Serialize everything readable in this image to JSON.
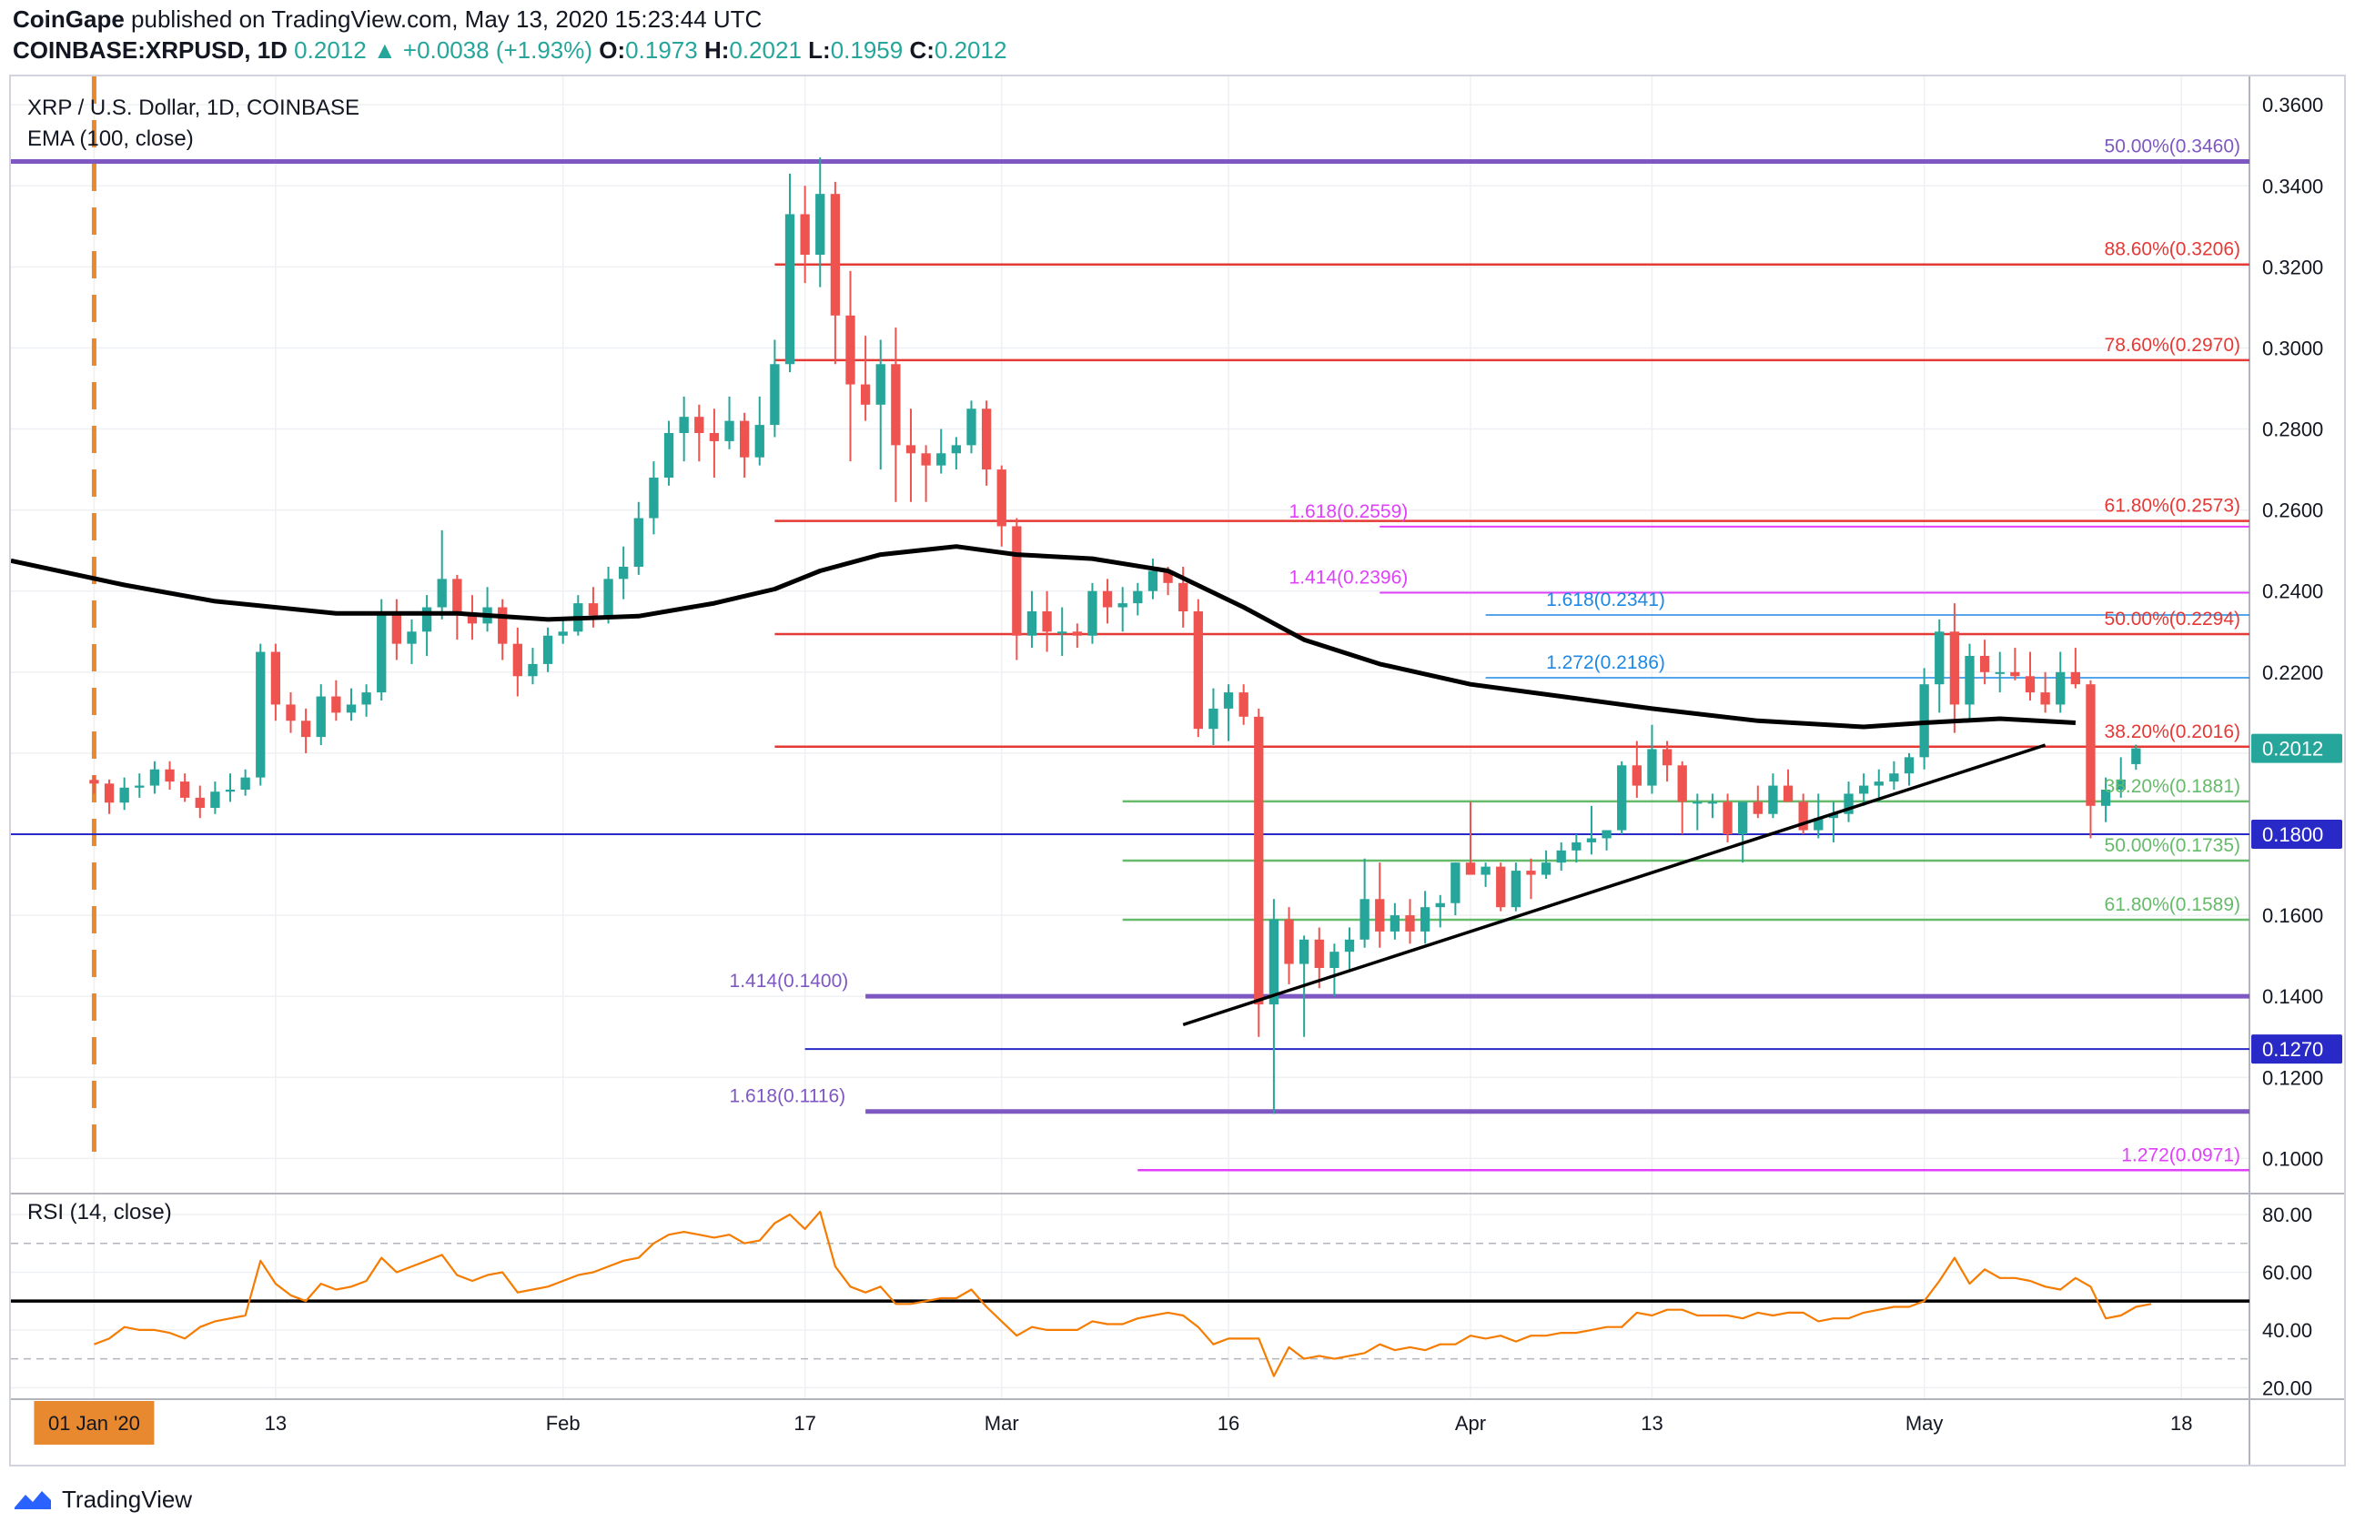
{
  "header": {
    "publisher": "CoinGape",
    "published_text": "published on TradingView.com, May 13, 2020 15:23:44 UTC",
    "symbol": "COINBASE:XRPUSD, 1D",
    "last": "0.2012",
    "change": "▲ +0.0038 (+1.93%)",
    "o_label": "O:",
    "o": "0.1973",
    "h_label": "H:",
    "h": "0.2021",
    "l_label": "L:",
    "l": "0.1959",
    "c_label": "C:",
    "c": "0.2012"
  },
  "legend": {
    "title": "XRP / U.S. Dollar, 1D, COINBASE",
    "indicator": "EMA (100, close)",
    "rsi_title": "RSI (14, close)"
  },
  "footer": {
    "brand": "TradingView"
  },
  "colors": {
    "up": "#26a69a",
    "down": "#ef5350",
    "ema": "#000000",
    "rsi": "#f57c00",
    "fib_red": "#e53935",
    "fib_green": "#66bb6a",
    "fib_purple": "#7e57c2",
    "fib_magenta": "#e040fb",
    "fib_blue": "#1e88e5",
    "support_blue": "#2929c7",
    "price_tag": "#26a69a",
    "date_marker": "#e8892f"
  },
  "chart_data": {
    "type": "candlestick",
    "title": "XRP / U.S. Dollar, 1D, COINBASE",
    "ylim": [
      0.092,
      0.367
    ],
    "yticks": [
      "0.3600",
      "0.3400",
      "0.3200",
      "0.3000",
      "0.2800",
      "0.2600",
      "0.2400",
      "0.2200",
      "0.2000",
      "0.1800",
      "0.1600",
      "0.1400",
      "0.1200",
      "0.1000"
    ],
    "xlim": [
      -5.5,
      142.5
    ],
    "xticks": [
      {
        "x": 0,
        "label": "01 Jan '20",
        "highlight": true
      },
      {
        "x": 12,
        "label": "13"
      },
      {
        "x": 31,
        "label": "Feb"
      },
      {
        "x": 47,
        "label": "17"
      },
      {
        "x": 60,
        "label": "Mar"
      },
      {
        "x": 75,
        "label": "16"
      },
      {
        "x": 91,
        "label": "Apr"
      },
      {
        "x": 103,
        "label": "13"
      },
      {
        "x": 121,
        "label": "May"
      },
      {
        "x": 138,
        "label": "18"
      }
    ],
    "current_price": {
      "value": 0.2012,
      "label": "0.2012"
    },
    "price_labels": [
      {
        "value": 0.18,
        "label": "0.1800"
      },
      {
        "value": 0.127,
        "label": "0.1270"
      }
    ],
    "grid": true,
    "candles_ohlc": [
      [
        0.1934,
        0.1945,
        0.19,
        0.1925
      ],
      [
        0.1925,
        0.1935,
        0.185,
        0.1878
      ],
      [
        0.1878,
        0.194,
        0.186,
        0.1915
      ],
      [
        0.1915,
        0.195,
        0.189,
        0.192
      ],
      [
        0.192,
        0.198,
        0.19,
        0.196
      ],
      [
        0.196,
        0.198,
        0.191,
        0.193
      ],
      [
        0.193,
        0.195,
        0.188,
        0.189
      ],
      [
        0.189,
        0.192,
        0.184,
        0.1865
      ],
      [
        0.1865,
        0.193,
        0.185,
        0.1905
      ],
      [
        0.1905,
        0.195,
        0.188,
        0.191
      ],
      [
        0.191,
        0.196,
        0.1895,
        0.194
      ],
      [
        0.194,
        0.227,
        0.192,
        0.225
      ],
      [
        0.225,
        0.227,
        0.208,
        0.212
      ],
      [
        0.212,
        0.215,
        0.205,
        0.208
      ],
      [
        0.208,
        0.211,
        0.2,
        0.204
      ],
      [
        0.204,
        0.217,
        0.202,
        0.214
      ],
      [
        0.214,
        0.218,
        0.208,
        0.21
      ],
      [
        0.21,
        0.216,
        0.208,
        0.212
      ],
      [
        0.212,
        0.217,
        0.209,
        0.215
      ],
      [
        0.215,
        0.238,
        0.213,
        0.234
      ],
      [
        0.234,
        0.238,
        0.223,
        0.227
      ],
      [
        0.227,
        0.233,
        0.222,
        0.23
      ],
      [
        0.23,
        0.239,
        0.224,
        0.236
      ],
      [
        0.236,
        0.255,
        0.233,
        0.243
      ],
      [
        0.243,
        0.244,
        0.228,
        0.234
      ],
      [
        0.234,
        0.239,
        0.228,
        0.232
      ],
      [
        0.232,
        0.241,
        0.23,
        0.236
      ],
      [
        0.236,
        0.238,
        0.223,
        0.227
      ],
      [
        0.227,
        0.231,
        0.214,
        0.219
      ],
      [
        0.219,
        0.226,
        0.217,
        0.222
      ],
      [
        0.222,
        0.231,
        0.22,
        0.229
      ],
      [
        0.229,
        0.233,
        0.227,
        0.23
      ],
      [
        0.23,
        0.239,
        0.229,
        0.237
      ],
      [
        0.237,
        0.241,
        0.231,
        0.234
      ],
      [
        0.234,
        0.246,
        0.232,
        0.243
      ],
      [
        0.243,
        0.251,
        0.238,
        0.246
      ],
      [
        0.246,
        0.262,
        0.244,
        0.258
      ],
      [
        0.258,
        0.272,
        0.254,
        0.268
      ],
      [
        0.268,
        0.282,
        0.266,
        0.279
      ],
      [
        0.279,
        0.288,
        0.272,
        0.283
      ],
      [
        0.283,
        0.286,
        0.272,
        0.279
      ],
      [
        0.279,
        0.285,
        0.268,
        0.277
      ],
      [
        0.277,
        0.288,
        0.275,
        0.282
      ],
      [
        0.282,
        0.284,
        0.268,
        0.273
      ],
      [
        0.273,
        0.288,
        0.271,
        0.281
      ],
      [
        0.281,
        0.302,
        0.278,
        0.296
      ],
      [
        0.296,
        0.343,
        0.294,
        0.333
      ],
      [
        0.333,
        0.34,
        0.316,
        0.323
      ],
      [
        0.323,
        0.347,
        0.315,
        0.338
      ],
      [
        0.338,
        0.341,
        0.296,
        0.308
      ],
      [
        0.308,
        0.319,
        0.272,
        0.291
      ],
      [
        0.291,
        0.303,
        0.282,
        0.286
      ],
      [
        0.286,
        0.302,
        0.27,
        0.296
      ],
      [
        0.296,
        0.305,
        0.262,
        0.276
      ],
      [
        0.276,
        0.285,
        0.262,
        0.274
      ],
      [
        0.274,
        0.276,
        0.262,
        0.271
      ],
      [
        0.271,
        0.28,
        0.269,
        0.274
      ],
      [
        0.274,
        0.278,
        0.27,
        0.276
      ],
      [
        0.276,
        0.287,
        0.274,
        0.285
      ],
      [
        0.285,
        0.287,
        0.266,
        0.27
      ],
      [
        0.27,
        0.271,
        0.251,
        0.256
      ],
      [
        0.256,
        0.258,
        0.223,
        0.229
      ],
      [
        0.229,
        0.24,
        0.226,
        0.235
      ],
      [
        0.235,
        0.24,
        0.225,
        0.23
      ],
      [
        0.23,
        0.236,
        0.224,
        0.23
      ],
      [
        0.23,
        0.232,
        0.226,
        0.229
      ],
      [
        0.229,
        0.242,
        0.227,
        0.24
      ],
      [
        0.24,
        0.243,
        0.232,
        0.236
      ],
      [
        0.236,
        0.241,
        0.23,
        0.237
      ],
      [
        0.237,
        0.242,
        0.234,
        0.24
      ],
      [
        0.24,
        0.248,
        0.238,
        0.245
      ],
      [
        0.245,
        0.246,
        0.239,
        0.242
      ],
      [
        0.242,
        0.246,
        0.231,
        0.235
      ],
      [
        0.235,
        0.238,
        0.204,
        0.206
      ],
      [
        0.206,
        0.216,
        0.202,
        0.211
      ],
      [
        0.211,
        0.217,
        0.203,
        0.215
      ],
      [
        0.215,
        0.217,
        0.207,
        0.209
      ],
      [
        0.209,
        0.211,
        0.13,
        0.138
      ],
      [
        0.138,
        0.164,
        0.111,
        0.159
      ],
      [
        0.159,
        0.162,
        0.143,
        0.148
      ],
      [
        0.148,
        0.155,
        0.13,
        0.154
      ],
      [
        0.154,
        0.157,
        0.142,
        0.147
      ],
      [
        0.147,
        0.153,
        0.14,
        0.151
      ],
      [
        0.151,
        0.157,
        0.146,
        0.154
      ],
      [
        0.154,
        0.174,
        0.152,
        0.164
      ],
      [
        0.164,
        0.173,
        0.152,
        0.156
      ],
      [
        0.156,
        0.163,
        0.154,
        0.16
      ],
      [
        0.16,
        0.164,
        0.153,
        0.156
      ],
      [
        0.156,
        0.166,
        0.153,
        0.162
      ],
      [
        0.162,
        0.165,
        0.157,
        0.163
      ],
      [
        0.163,
        0.173,
        0.16,
        0.173
      ],
      [
        0.173,
        0.188,
        0.17,
        0.17
      ],
      [
        0.17,
        0.173,
        0.167,
        0.172
      ],
      [
        0.172,
        0.173,
        0.161,
        0.162
      ],
      [
        0.162,
        0.173,
        0.161,
        0.171
      ],
      [
        0.171,
        0.174,
        0.164,
        0.17
      ],
      [
        0.17,
        0.176,
        0.169,
        0.173
      ],
      [
        0.173,
        0.178,
        0.171,
        0.176
      ],
      [
        0.176,
        0.18,
        0.173,
        0.178
      ],
      [
        0.178,
        0.187,
        0.175,
        0.179
      ],
      [
        0.179,
        0.181,
        0.176,
        0.181
      ],
      [
        0.181,
        0.198,
        0.18,
        0.197
      ],
      [
        0.197,
        0.203,
        0.189,
        0.192
      ],
      [
        0.192,
        0.207,
        0.19,
        0.201
      ],
      [
        0.201,
        0.203,
        0.193,
        0.197
      ],
      [
        0.197,
        0.198,
        0.18,
        0.188
      ],
      [
        0.188,
        0.19,
        0.181,
        0.188
      ],
      [
        0.188,
        0.19,
        0.184,
        0.188
      ],
      [
        0.188,
        0.19,
        0.178,
        0.18
      ],
      [
        0.18,
        0.187,
        0.173,
        0.188
      ],
      [
        0.188,
        0.192,
        0.184,
        0.185
      ],
      [
        0.185,
        0.195,
        0.184,
        0.192
      ],
      [
        0.192,
        0.196,
        0.188,
        0.188
      ],
      [
        0.188,
        0.19,
        0.18,
        0.181
      ],
      [
        0.181,
        0.19,
        0.179,
        0.184
      ],
      [
        0.184,
        0.188,
        0.178,
        0.185
      ],
      [
        0.185,
        0.193,
        0.183,
        0.19
      ],
      [
        0.19,
        0.195,
        0.187,
        0.192
      ],
      [
        0.192,
        0.196,
        0.188,
        0.193
      ],
      [
        0.193,
        0.198,
        0.191,
        0.195
      ],
      [
        0.195,
        0.2,
        0.192,
        0.199
      ],
      [
        0.199,
        0.221,
        0.196,
        0.217
      ],
      [
        0.217,
        0.233,
        0.21,
        0.23
      ],
      [
        0.23,
        0.237,
        0.205,
        0.212
      ],
      [
        0.212,
        0.227,
        0.208,
        0.224
      ],
      [
        0.224,
        0.228,
        0.217,
        0.22
      ],
      [
        0.22,
        0.225,
        0.215,
        0.22
      ],
      [
        0.22,
        0.226,
        0.218,
        0.219
      ],
      [
        0.219,
        0.225,
        0.213,
        0.215
      ],
      [
        0.215,
        0.22,
        0.21,
        0.212
      ],
      [
        0.212,
        0.225,
        0.21,
        0.22
      ],
      [
        0.22,
        0.226,
        0.216,
        0.217
      ],
      [
        0.217,
        0.218,
        0.179,
        0.187
      ],
      [
        0.187,
        0.194,
        0.183,
        0.191
      ],
      [
        0.191,
        0.199,
        0.189,
        0.1935
      ],
      [
        0.1973,
        0.2021,
        0.1959,
        0.2012
      ]
    ],
    "ema": {
      "name": "EMA (100, close)",
      "points": [
        [
          -5.5,
          0.2475
        ],
        [
          2,
          0.2415
        ],
        [
          8,
          0.2375
        ],
        [
          16,
          0.2345
        ],
        [
          24,
          0.2345
        ],
        [
          30,
          0.233
        ],
        [
          36,
          0.2338
        ],
        [
          41,
          0.237
        ],
        [
          45,
          0.2405
        ],
        [
          48,
          0.245
        ],
        [
          52,
          0.249
        ],
        [
          57,
          0.251
        ],
        [
          61,
          0.249
        ],
        [
          66,
          0.248
        ],
        [
          71,
          0.245
        ],
        [
          76,
          0.236
        ],
        [
          80,
          0.228
        ],
        [
          85,
          0.222
        ],
        [
          91,
          0.217
        ],
        [
          97,
          0.214
        ],
        [
          103,
          0.211
        ],
        [
          110,
          0.208
        ],
        [
          117,
          0.2065
        ],
        [
          121,
          0.2075
        ],
        [
          126,
          0.2085
        ],
        [
          131,
          0.2075
        ]
      ]
    },
    "trendline": {
      "from": [
        72,
        0.133
      ],
      "to": [
        129,
        0.202
      ]
    },
    "fib_lines": [
      {
        "value": 0.346,
        "label": "50.00%(0.3460)",
        "color": "#7e57c2",
        "x1": -5.5,
        "x2": 142.5,
        "width": 5
      },
      {
        "value": 0.3206,
        "label": "88.60%(0.3206)",
        "color": "#e53935",
        "x1": 45,
        "x2": 142.5,
        "width": 2.5
      },
      {
        "value": 0.297,
        "label": "78.60%(0.2970)",
        "color": "#e53935",
        "x1": 45,
        "x2": 142.5,
        "width": 2.5
      },
      {
        "value": 0.2573,
        "label": "61.80%(0.2573)",
        "color": "#e53935",
        "x1": 45,
        "x2": 142.5,
        "width": 2.5
      },
      {
        "value": 0.2559,
        "label": "1.618(0.2559)",
        "color": "#e040fb",
        "x1": 85,
        "x2": 142.5,
        "width": 2,
        "label_pos": "mid",
        "label_x": 79
      },
      {
        "value": 0.2396,
        "label": "1.414(0.2396)",
        "color": "#e040fb",
        "x1": 85,
        "x2": 142.5,
        "width": 2,
        "label_pos": "mid",
        "label_x": 79
      },
      {
        "value": 0.2341,
        "label": "1.618(0.2341)",
        "color": "#1e88e5",
        "x1": 92,
        "x2": 142.5,
        "width": 1.5,
        "label_pos": "mid",
        "label_x": 96
      },
      {
        "value": 0.2294,
        "label": "50.00%(0.2294)",
        "color": "#e53935",
        "x1": 45,
        "x2": 142.5,
        "width": 2.5
      },
      {
        "value": 0.2186,
        "label": "1.272(0.2186)",
        "color": "#1e88e5",
        "x1": 92,
        "x2": 142.5,
        "width": 1.5,
        "label_pos": "mid",
        "label_x": 96
      },
      {
        "value": 0.2016,
        "label": "38.20%(0.2016)",
        "color": "#e53935",
        "x1": 45,
        "x2": 142.5,
        "width": 2.5
      },
      {
        "value": 0.1881,
        "label": "38.20%(0.1881)",
        "color": "#66bb6a",
        "x1": 68,
        "x2": 142.5,
        "width": 2.5
      },
      {
        "value": 0.18,
        "label": "",
        "color": "#2929c7",
        "x1": -5.5,
        "x2": 142.5,
        "width": 2
      },
      {
        "value": 0.1735,
        "label": "50.00%(0.1735)",
        "color": "#66bb6a",
        "x1": 68,
        "x2": 142.5,
        "width": 2.5
      },
      {
        "value": 0.1589,
        "label": "61.80%(0.1589)",
        "color": "#66bb6a",
        "x1": 68,
        "x2": 142.5,
        "width": 2.5
      },
      {
        "value": 0.14,
        "label": "1.414(0.1400)",
        "color": "#7e57c2",
        "x1": 51,
        "x2": 142.5,
        "width": 5,
        "label_pos": "mid",
        "label_x": 42
      },
      {
        "value": 0.127,
        "label": "",
        "color": "#2929c7",
        "x1": 47,
        "x2": 142.5,
        "width": 2
      },
      {
        "value": 0.1116,
        "label": "1.618(0.1116)",
        "color": "#7e57c2",
        "x1": 51,
        "x2": 142.5,
        "width": 5,
        "label_pos": "mid",
        "label_x": 42
      },
      {
        "value": 0.0971,
        "label": "1.272(0.0971)",
        "color": "#e040fb",
        "x1": 69,
        "x2": 142.5,
        "width": 2.5
      }
    ],
    "rsi": {
      "name": "RSI (14, close)",
      "ylim": [
        16,
        86
      ],
      "yticks": [
        "80.00",
        "60.00",
        "40.00",
        "20.00"
      ],
      "levels": {
        "upper": 70,
        "middle": 50,
        "lower": 30
      },
      "values": [
        35,
        37,
        41,
        40,
        40,
        39,
        37,
        41,
        43,
        44,
        45,
        64,
        56,
        52,
        50,
        56,
        54,
        55,
        57,
        65,
        60,
        62,
        64,
        66,
        59,
        57,
        59,
        60,
        53,
        54,
        55,
        57,
        59,
        60,
        62,
        64,
        65,
        70,
        73,
        74,
        73,
        72,
        73,
        70,
        71,
        77,
        80,
        75,
        81,
        62,
        55,
        53,
        55,
        49,
        49,
        50,
        51,
        51,
        54,
        48,
        43,
        38,
        41,
        40,
        40,
        40,
        43,
        42,
        42,
        44,
        45,
        46,
        45,
        41,
        35,
        37,
        37,
        37,
        24,
        34,
        30,
        31,
        30,
        31,
        32,
        35,
        33,
        34,
        33,
        35,
        35,
        38,
        37,
        38,
        36,
        38,
        38,
        39,
        39,
        40,
        41,
        41,
        46,
        45,
        47,
        47,
        45,
        45,
        45,
        44,
        46,
        45,
        46,
        46,
        43,
        44,
        44,
        46,
        47,
        48,
        48,
        50,
        57,
        65,
        56,
        61,
        58,
        58,
        57,
        55,
        54,
        58,
        55,
        44,
        45,
        48,
        49
      ]
    }
  }
}
